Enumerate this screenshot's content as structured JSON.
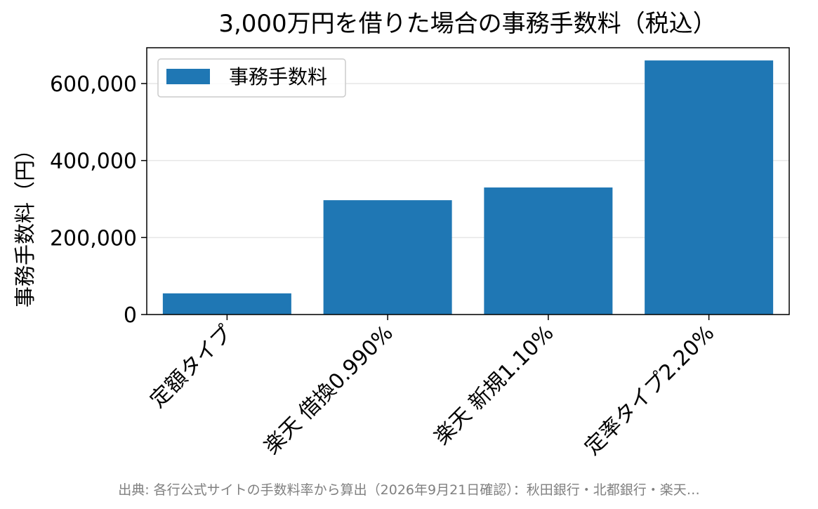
{
  "chart_data": {
    "type": "bar",
    "title": "3,000万円を借りた場合の事務手数料（税込）",
    "xlabel": "",
    "ylabel": "事務手数料（円）",
    "categories": [
      "定額タイプ",
      "楽天 借換0.990%",
      "楽天 新規1.10%",
      "定率タイプ2.20%"
    ],
    "series": [
      {
        "name": "事務手数料",
        "values": [
          55000,
          297000,
          330000,
          660000
        ],
        "color": "#1f77b4"
      }
    ],
    "ylim": [
      0,
      693000
    ],
    "yticks": [
      0,
      200000,
      400000,
      600000
    ],
    "ytick_labels": [
      "0",
      "200,000",
      "400,000",
      "600,000"
    ],
    "grid": {
      "y": true,
      "x": false
    },
    "legend": "top-left"
  },
  "footnote": "出典: 各行公式サイトの手数料率から算出（2026年9月21日確認）：秋田銀行・北都銀行・楽天…"
}
